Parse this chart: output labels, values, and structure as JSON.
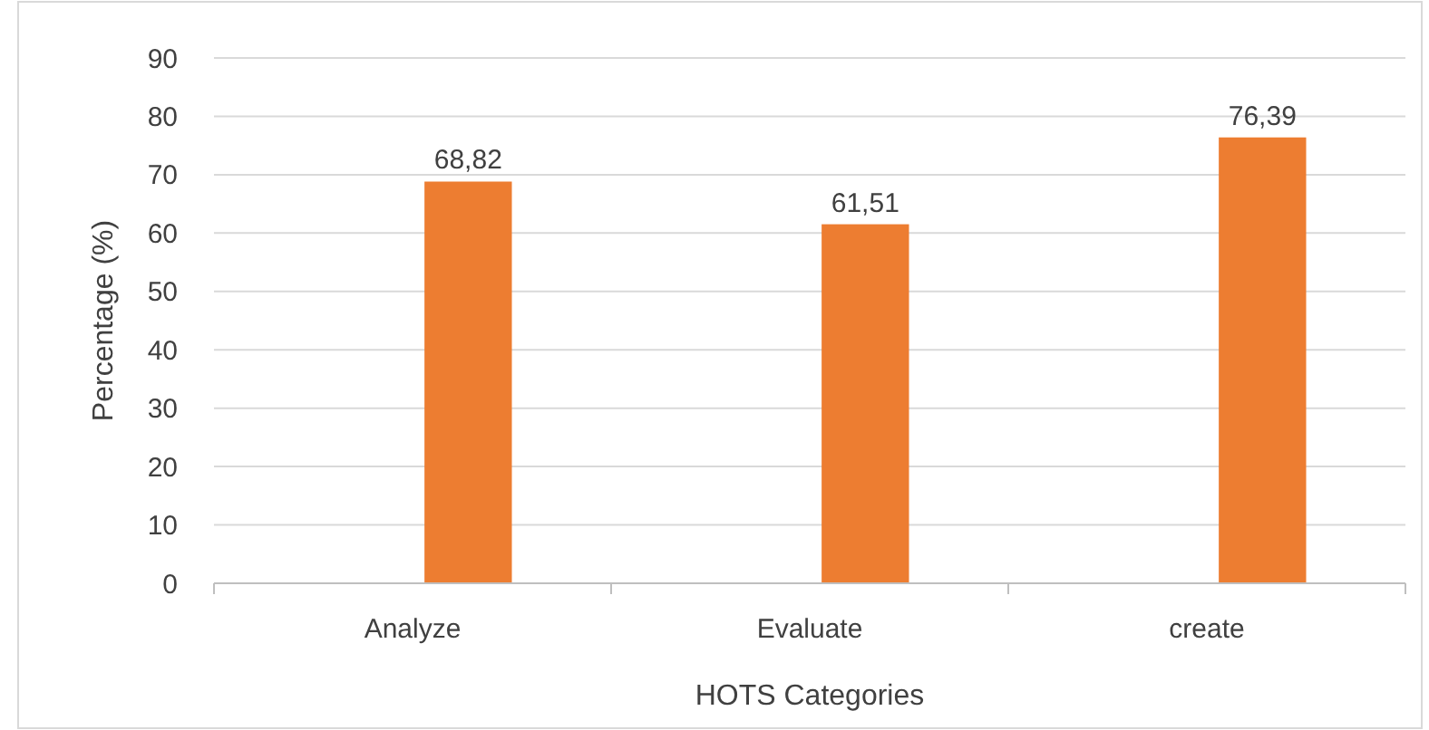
{
  "chart_data": {
    "type": "bar",
    "xlabel": "HOTS Categories",
    "ylabel": "Percentage (%)",
    "categories": [
      "Analyze",
      "Evaluate",
      "create"
    ],
    "values": [
      68.82,
      61.51,
      76.39
    ],
    "value_labels": [
      "68,82",
      "61,51",
      "76,39"
    ],
    "color": "#ed7d31",
    "ylim": [
      0,
      90
    ],
    "yticks": [
      0,
      10,
      20,
      30,
      40,
      50,
      60,
      70,
      80,
      90
    ],
    "grid": "y"
  }
}
